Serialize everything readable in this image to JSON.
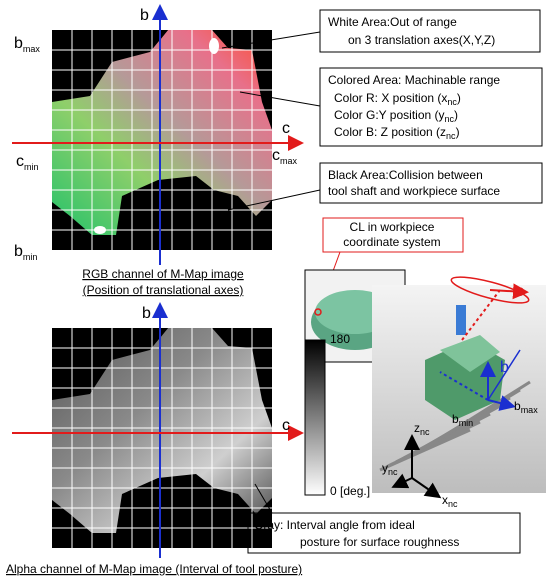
{
  "rgb_map": {
    "b_axis": "b",
    "c_axis": "c",
    "b_max": {
      "base": "b",
      "sub": "max"
    },
    "b_min": {
      "base": "b",
      "sub": "min"
    },
    "c_min": {
      "base": "c",
      "sub": "min"
    },
    "c_max": {
      "base": "c",
      "sub": "max"
    },
    "caption": [
      "RGB channel of M-Map image",
      "(Position of translational axes)"
    ]
  },
  "callouts": {
    "white_area": [
      "White Area:Out of range",
      "on 3 translation axes(X,Y,Z)"
    ],
    "colored_area": {
      "title": "Colored Area: Machinable range",
      "lines": [
        {
          "text": "Color R: X position (x",
          "sub": "nc",
          "end": ")"
        },
        {
          "text": "Color G:Y position (y",
          "sub": "nc",
          "end": ")"
        },
        {
          "text": "Color B: Z position (z",
          "sub": "nc",
          "end": ")"
        }
      ]
    },
    "black_area": [
      "Black Area:Collision between",
      "tool shaft and workpiece surface"
    ],
    "cl_note": [
      "CL in workpiece",
      "coordinate system"
    ],
    "gray_area": [
      "Gray: Interval angle from ideal",
      "posture for surface roughness"
    ]
  },
  "alpha_map": {
    "b_axis": "b",
    "c_axis": "c",
    "caption": "Alpha channel of M-Map image (Interval of tool posture)"
  },
  "colorbar": {
    "max_label": "180",
    "min_label": "0 [deg.]"
  },
  "machine_view": {
    "c_label": "c",
    "b_label": "b",
    "b_max": {
      "base": "b",
      "sub": "max"
    },
    "b_min": {
      "base": "b",
      "sub": "min"
    },
    "z_axis": {
      "base": "z",
      "sub": "nc"
    },
    "y_axis": {
      "base": "y",
      "sub": "nc"
    },
    "x_axis": {
      "base": "x",
      "sub": "nc"
    }
  }
}
